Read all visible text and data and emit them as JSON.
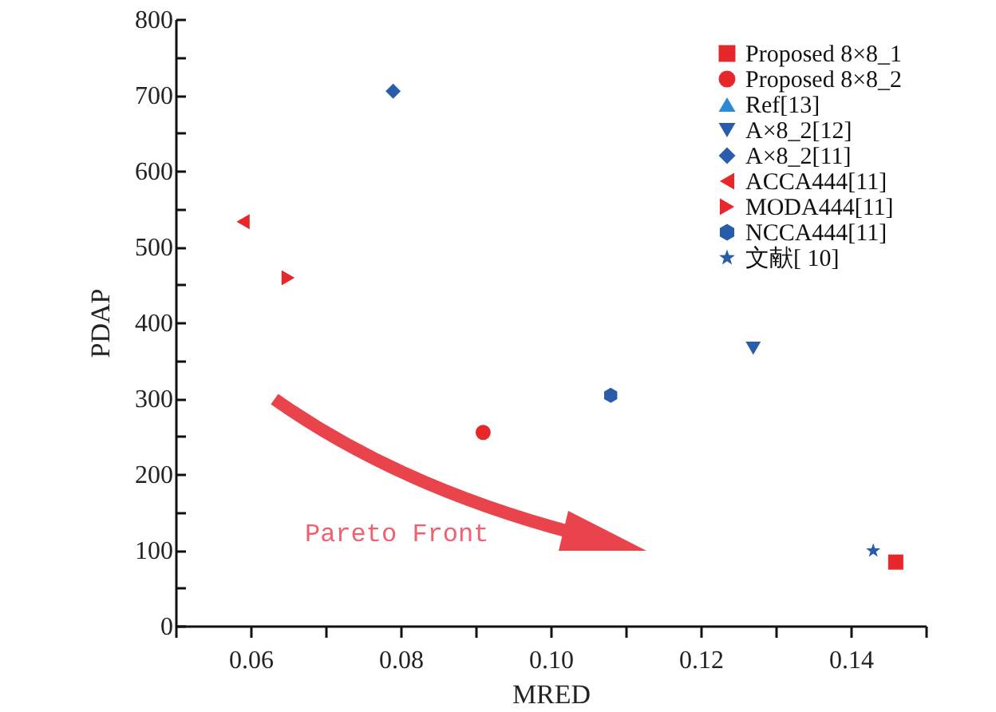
{
  "chart_data": {
    "type": "scatter",
    "xlabel": "MRED",
    "ylabel": "PDAP",
    "xlim": [
      0.05,
      0.15
    ],
    "ylim": [
      0,
      800
    ],
    "xticks": [
      {
        "value": 0.05,
        "label": null
      },
      {
        "value": 0.06,
        "label": "0.06"
      },
      {
        "value": 0.07,
        "label": null
      },
      {
        "value": 0.08,
        "label": "0.08"
      },
      {
        "value": 0.09,
        "label": null
      },
      {
        "value": 0.1,
        "label": "0.10"
      },
      {
        "value": 0.11,
        "label": null
      },
      {
        "value": 0.12,
        "label": "0.12"
      },
      {
        "value": 0.13,
        "label": null
      },
      {
        "value": 0.14,
        "label": "0.14"
      },
      {
        "value": 0.15,
        "label": null
      }
    ],
    "yticks": [
      0,
      {
        "value": 50,
        "label": null
      },
      100,
      {
        "value": 150,
        "label": null
      },
      200,
      {
        "value": 250,
        "label": null
      },
      300,
      {
        "value": 350,
        "label": null
      },
      400,
      {
        "value": 450,
        "label": null
      },
      500,
      {
        "value": 550,
        "label": null
      },
      600,
      {
        "value": 650,
        "label": null
      },
      700,
      {
        "value": 750,
        "label": null
      },
      800
    ],
    "legend": "top right",
    "annotations": [
      "Pareto Front"
    ],
    "series": [
      {
        "name": "Proposed 8×8_1",
        "color": "#e8272b",
        "marker": "square",
        "x": [
          0.146
        ],
        "values": [
          84
        ]
      },
      {
        "name": "Proposed 8×8_2",
        "color": "#e8272b",
        "marker": "circle",
        "x": [
          0.091
        ],
        "values": [
          255
        ]
      },
      {
        "name": "Ref[13]",
        "color": "#2b8ad6",
        "marker": "triangle-up",
        "x": [
          null
        ],
        "values": [
          null
        ]
      },
      {
        "name": "A×8_2[12]",
        "color": "#2a5cac",
        "marker": "triangle-down",
        "x": [
          0.127
        ],
        "values": [
          366
        ]
      },
      {
        "name": "A×8_2[11]",
        "color": "#2a5cac",
        "marker": "diamond",
        "x": [
          0.079
        ],
        "values": [
          705
        ]
      },
      {
        "name": "ACCA444[11]",
        "color": "#e8272b",
        "marker": "triangle-left",
        "x": [
          0.059
        ],
        "values": [
          533
        ]
      },
      {
        "name": "MODA444[11]",
        "color": "#e8272b",
        "marker": "triangle-right",
        "x": [
          0.065
        ],
        "values": [
          459
        ]
      },
      {
        "name": "NCCA444[11]",
        "color": "#2a5cac",
        "x": [
          0.108
        ],
        "values": [
          304
        ]
      },
      {
        "name": "文献[ 10]",
        "color": "#2a5cac",
        "marker": "star",
        "x": [
          0.143
        ],
        "values": [
          99
        ]
      }
    ]
  }
}
